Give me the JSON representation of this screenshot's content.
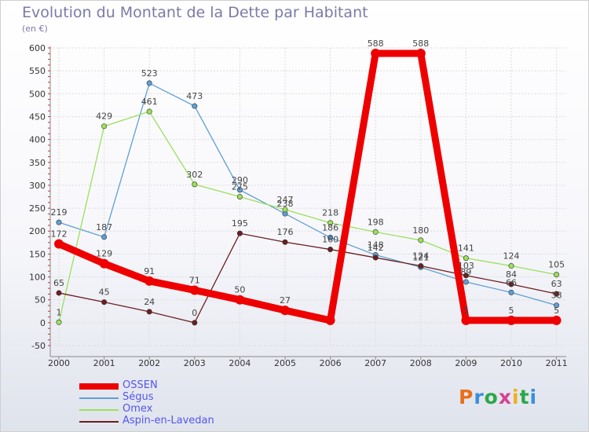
{
  "title": "Evolution du Montant de la Dette par Habitant",
  "subtitle": "(en €)",
  "logo_text": "Proxiti",
  "chart_data": {
    "type": "line",
    "title": "Evolution du Montant de la Dette par Habitant",
    "subtitle": "(en €)",
    "xlabel": "",
    "ylabel": "",
    "categories": [
      "2000",
      "2001",
      "2002",
      "2003",
      "2004",
      "2005",
      "2006",
      "2007",
      "2008",
      "2009",
      "2010",
      "2011"
    ],
    "ylim": [
      -50,
      600
    ],
    "yticks": [
      -50,
      0,
      50,
      100,
      150,
      200,
      250,
      300,
      350,
      400,
      450,
      500,
      550,
      600
    ],
    "grid": true,
    "legend": "bottom-left",
    "series": [
      {
        "name": "OSSEN",
        "color": "#ee0000",
        "values": [
          172,
          129,
          91,
          71,
          50,
          27,
          5,
          588,
          588,
          5,
          5,
          5
        ],
        "labels": [
          "172",
          "129",
          "91",
          "71",
          "50",
          "27",
          "",
          "588",
          "588",
          "5",
          "5",
          "5"
        ]
      },
      {
        "name": "Ségus",
        "color": "#5f9fd3",
        "values": [
          219,
          187,
          523,
          473,
          290,
          238,
          186,
          148,
          121,
          89,
          66,
          38
        ],
        "labels": [
          "219",
          "187",
          "523",
          "473",
          "290",
          "238",
          "186",
          "148",
          "121",
          "89",
          "66",
          "38"
        ]
      },
      {
        "name": "Omex",
        "color": "#9be05a",
        "values": [
          1,
          429,
          461,
          302,
          275,
          247,
          218,
          198,
          180,
          141,
          124,
          105
        ],
        "labels": [
          "1",
          "429",
          "461",
          "302",
          "275",
          "247",
          "218",
          "198",
          "180",
          "141",
          "124",
          "105"
        ]
      },
      {
        "name": "Aspin-en-Lavedan",
        "color": "#6b1f1f",
        "values": [
          65,
          45,
          24,
          0,
          195,
          176,
          160,
          142,
          124,
          103,
          84,
          63
        ],
        "labels": [
          "65",
          "45",
          "24",
          "0",
          "195",
          "176",
          "160",
          "142",
          "124",
          "103",
          "84",
          "63"
        ]
      }
    ]
  }
}
